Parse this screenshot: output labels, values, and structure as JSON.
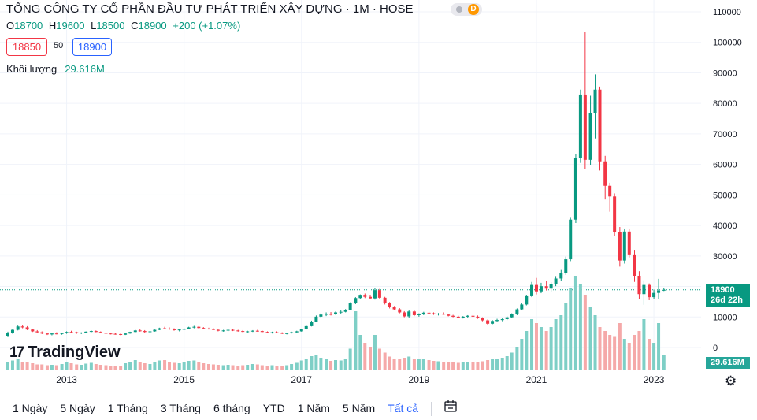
{
  "header": {
    "title": "TỔNG CÔNG TY CỔ PHẦN ĐẦU TƯ PHÁT TRIỂN XÂY DỰNG · 1M · HOSE",
    "badge": "D",
    "ohlc": {
      "o_label": "O",
      "o": "18700",
      "h_label": "H",
      "h": "19600",
      "l_label": "L",
      "l": "18500",
      "c_label": "C",
      "c": "18900",
      "change": "+200 (+1.07%)"
    },
    "sell_price": "18850",
    "spread": "50",
    "buy_price": "18900",
    "volume_label": "Khối lượng",
    "volume_value": "29.616M"
  },
  "logo": {
    "mark": "17",
    "text": "TradingView"
  },
  "last_price": {
    "price": "18900",
    "countdown": "26d 22h"
  },
  "volume_tag": "29.616M",
  "ranges": [
    "1 Ngày",
    "5 Ngày",
    "1 Tháng",
    "3 Tháng",
    "6 tháng",
    "YTD",
    "1 Năm",
    "5 Năm",
    "Tất cả"
  ],
  "active_range": "Tất cả",
  "icons": {
    "calendar": "calendar-range-icon",
    "settings": "gear-icon"
  },
  "colors": {
    "up": "#089981",
    "down": "#f23645",
    "vol_up": "#7ecfc6",
    "vol_down": "#f5a9a9"
  },
  "chart_data": {
    "type": "candlestick",
    "y_ticks": [
      110000,
      100000,
      90000,
      80000,
      70000,
      60000,
      50000,
      40000,
      30000,
      20000,
      10000,
      0
    ],
    "ylim": [
      0,
      110000
    ],
    "x_ticks": [
      "2013",
      "2015",
      "2017",
      "2019",
      "2021",
      "2023"
    ],
    "x_ticks_pos": [
      2013.0,
      2015.0,
      2017.0,
      2019.0,
      2021.0,
      2023.0
    ],
    "grid": true,
    "price_line": 18900,
    "candles": [
      [
        2012.0,
        3800,
        5200,
        3400,
        4800,
        2.0
      ],
      [
        2012.08,
        4800,
        6200,
        4500,
        5800,
        2.5
      ],
      [
        2012.17,
        5800,
        7200,
        5600,
        6900,
        2.8
      ],
      [
        2012.25,
        6900,
        7400,
        6300,
        6600,
        2.2
      ],
      [
        2012.33,
        6600,
        7000,
        5700,
        5900,
        2.0
      ],
      [
        2012.42,
        5900,
        6200,
        5100,
        5300,
        1.8
      ],
      [
        2012.5,
        5300,
        5700,
        4800,
        5000,
        1.5
      ],
      [
        2012.58,
        5000,
        5300,
        4400,
        4600,
        1.5
      ],
      [
        2012.67,
        4600,
        4900,
        4100,
        4300,
        1.3
      ],
      [
        2012.75,
        4300,
        4800,
        4000,
        4600,
        1.4
      ],
      [
        2012.83,
        4600,
        5000,
        4300,
        4500,
        1.3
      ],
      [
        2012.92,
        4500,
        4900,
        4200,
        4700,
        1.6
      ],
      [
        2013.0,
        4700,
        5300,
        4500,
        5100,
        2.0
      ],
      [
        2013.08,
        5100,
        5500,
        4800,
        5000,
        1.8
      ],
      [
        2013.17,
        5000,
        5200,
        4500,
        4700,
        1.5
      ],
      [
        2013.25,
        4700,
        5000,
        4400,
        4900,
        1.4
      ],
      [
        2013.33,
        4900,
        5300,
        4700,
        5200,
        1.7
      ],
      [
        2013.42,
        5200,
        5600,
        5000,
        5400,
        1.9
      ],
      [
        2013.5,
        5400,
        5600,
        5000,
        5100,
        1.6
      ],
      [
        2013.58,
        5100,
        5300,
        4700,
        4800,
        1.4
      ],
      [
        2013.67,
        4800,
        5000,
        4500,
        4600,
        1.3
      ],
      [
        2013.75,
        4600,
        4800,
        4300,
        4500,
        1.2
      ],
      [
        2013.83,
        4500,
        4800,
        4200,
        4400,
        1.2
      ],
      [
        2013.92,
        4400,
        4600,
        4000,
        4200,
        1.1
      ],
      [
        2014.0,
        4200,
        4700,
        4100,
        4600,
        1.8
      ],
      [
        2014.08,
        4600,
        5200,
        4500,
        5100,
        2.2
      ],
      [
        2014.17,
        5100,
        5800,
        5000,
        5600,
        2.6
      ],
      [
        2014.25,
        5600,
        6000,
        5200,
        5400,
        2.0
      ],
      [
        2014.33,
        5400,
        5700,
        4900,
        5100,
        1.8
      ],
      [
        2014.42,
        5100,
        5400,
        4800,
        5300,
        1.6
      ],
      [
        2014.5,
        5300,
        5900,
        5200,
        5800,
        2.0
      ],
      [
        2014.58,
        5800,
        6500,
        5700,
        6300,
        2.5
      ],
      [
        2014.67,
        6300,
        6800,
        6000,
        6200,
        2.6
      ],
      [
        2014.75,
        6200,
        6600,
        5800,
        6000,
        2.2
      ],
      [
        2014.83,
        6000,
        6300,
        5500,
        5700,
        1.9
      ],
      [
        2014.92,
        5700,
        6000,
        5300,
        5900,
        1.8
      ],
      [
        2015.0,
        5900,
        6300,
        5700,
        6100,
        2.0
      ],
      [
        2015.08,
        6100,
        6800,
        6000,
        6600,
        2.4
      ],
      [
        2015.17,
        6600,
        7100,
        6300,
        6800,
        2.5
      ],
      [
        2015.25,
        6800,
        7000,
        6200,
        6400,
        2.0
      ],
      [
        2015.33,
        6400,
        6700,
        6000,
        6200,
        1.8
      ],
      [
        2015.42,
        6200,
        6500,
        5900,
        6100,
        1.6
      ],
      [
        2015.5,
        6100,
        6300,
        5700,
        5800,
        1.5
      ],
      [
        2015.58,
        5800,
        6000,
        5300,
        5500,
        1.4
      ],
      [
        2015.67,
        5500,
        5800,
        5200,
        5600,
        1.3
      ],
      [
        2015.75,
        5600,
        5900,
        5300,
        5800,
        1.4
      ],
      [
        2015.83,
        5800,
        6000,
        5400,
        5600,
        1.3
      ],
      [
        2015.92,
        5600,
        5800,
        5200,
        5400,
        1.2
      ],
      [
        2016.0,
        5400,
        5700,
        5000,
        5200,
        1.3
      ],
      [
        2016.08,
        5200,
        5500,
        4800,
        5300,
        1.4
      ],
      [
        2016.17,
        5300,
        5700,
        5100,
        5500,
        1.6
      ],
      [
        2016.25,
        5500,
        5800,
        5200,
        5400,
        1.5
      ],
      [
        2016.33,
        5400,
        5600,
        5000,
        5100,
        1.3
      ],
      [
        2016.42,
        5100,
        5300,
        4800,
        4900,
        1.2
      ],
      [
        2016.5,
        4900,
        5200,
        4600,
        5000,
        1.3
      ],
      [
        2016.58,
        5000,
        5300,
        4700,
        4800,
        1.2
      ],
      [
        2016.67,
        4800,
        5000,
        4400,
        4600,
        1.1
      ],
      [
        2016.75,
        4600,
        4900,
        4300,
        4700,
        1.3
      ],
      [
        2016.83,
        4700,
        5200,
        4600,
        5000,
        1.6
      ],
      [
        2016.92,
        5000,
        5500,
        4800,
        5300,
        1.9
      ],
      [
        2017.0,
        5300,
        6200,
        5200,
        6000,
        2.5
      ],
      [
        2017.08,
        6000,
        7200,
        5900,
        7000,
        3.0
      ],
      [
        2017.17,
        7000,
        8800,
        6900,
        8500,
        3.6
      ],
      [
        2017.25,
        8500,
        10500,
        8300,
        10100,
        4.0
      ],
      [
        2017.33,
        10100,
        11200,
        9600,
        10800,
        3.2
      ],
      [
        2017.42,
        10800,
        11500,
        10300,
        11000,
        2.8
      ],
      [
        2017.5,
        11000,
        11600,
        10500,
        10900,
        2.4
      ],
      [
        2017.58,
        10900,
        11800,
        10700,
        11500,
        2.6
      ],
      [
        2017.67,
        11500,
        12200,
        11100,
        11700,
        2.5
      ],
      [
        2017.75,
        11700,
        12600,
        11500,
        12300,
        3.0
      ],
      [
        2017.83,
        12300,
        14800,
        12200,
        14500,
        5.5
      ],
      [
        2017.92,
        14500,
        16500,
        14200,
        16200,
        15.0
      ],
      [
        2018.0,
        16200,
        17400,
        15800,
        17000,
        9.0
      ],
      [
        2018.08,
        17000,
        17700,
        16200,
        16600,
        7.0
      ],
      [
        2018.17,
        16600,
        17200,
        15800,
        16100,
        6.0
      ],
      [
        2018.25,
        16100,
        19600,
        15700,
        18800,
        9.0
      ],
      [
        2018.33,
        18800,
        19200,
        15900,
        16300,
        5.5
      ],
      [
        2018.42,
        16300,
        16600,
        14100,
        14600,
        4.5
      ],
      [
        2018.5,
        14600,
        14900,
        12800,
        13200,
        3.5
      ],
      [
        2018.58,
        13200,
        13600,
        12200,
        12500,
        3.0
      ],
      [
        2018.67,
        12500,
        12900,
        11200,
        11500,
        3.0
      ],
      [
        2018.75,
        11500,
        11900,
        9900,
        10200,
        3.2
      ],
      [
        2018.83,
        10200,
        12200,
        9800,
        11800,
        3.5
      ],
      [
        2018.92,
        11800,
        12100,
        10300,
        10600,
        3.0
      ],
      [
        2019.0,
        10600,
        11200,
        10100,
        10900,
        2.8
      ],
      [
        2019.08,
        10900,
        11700,
        10600,
        11400,
        3.0
      ],
      [
        2019.17,
        11400,
        11800,
        10900,
        11200,
        2.6
      ],
      [
        2019.25,
        11200,
        11500,
        10700,
        10900,
        2.4
      ],
      [
        2019.33,
        10900,
        11300,
        10500,
        11100,
        2.3
      ],
      [
        2019.42,
        11100,
        11500,
        10700,
        10800,
        2.2
      ],
      [
        2019.5,
        10800,
        11100,
        10200,
        10400,
        2.1
      ],
      [
        2019.58,
        10400,
        10700,
        9900,
        10100,
        2.0
      ],
      [
        2019.67,
        10100,
        10400,
        9600,
        9800,
        1.9
      ],
      [
        2019.75,
        9800,
        10300,
        9500,
        10100,
        2.0
      ],
      [
        2019.83,
        10100,
        10600,
        9800,
        10400,
        2.2
      ],
      [
        2019.92,
        10400,
        10700,
        9900,
        10100,
        2.0
      ],
      [
        2020.0,
        10100,
        10500,
        9400,
        9700,
        2.1
      ],
      [
        2020.08,
        9700,
        9900,
        8600,
        8900,
        2.3
      ],
      [
        2020.17,
        8900,
        9200,
        7400,
        7800,
        2.6
      ],
      [
        2020.25,
        7800,
        9000,
        7600,
        8700,
        2.8
      ],
      [
        2020.33,
        8700,
        9400,
        8400,
        9000,
        3.0
      ],
      [
        2020.42,
        9000,
        9600,
        8600,
        9300,
        3.2
      ],
      [
        2020.5,
        9300,
        10200,
        9000,
        9900,
        3.6
      ],
      [
        2020.58,
        9900,
        11200,
        9700,
        10900,
        4.5
      ],
      [
        2020.67,
        10900,
        12800,
        10600,
        12500,
        6.0
      ],
      [
        2020.75,
        12500,
        14500,
        12200,
        14100,
        8.0
      ],
      [
        2020.83,
        14100,
        17200,
        13800,
        16800,
        10.0
      ],
      [
        2020.92,
        16800,
        21500,
        16500,
        20500,
        13.0
      ],
      [
        2021.0,
        20500,
        22800,
        17400,
        18400,
        12.0
      ],
      [
        2021.08,
        18400,
        21200,
        17800,
        20100,
        11.0
      ],
      [
        2021.17,
        20100,
        21800,
        18700,
        19300,
        10.0
      ],
      [
        2021.25,
        19300,
        21400,
        18400,
        20700,
        11.0
      ],
      [
        2021.33,
        20700,
        23400,
        20100,
        22600,
        13.0
      ],
      [
        2021.42,
        22600,
        25400,
        21900,
        24300,
        14.0
      ],
      [
        2021.5,
        24300,
        29800,
        23800,
        28900,
        17.0
      ],
      [
        2021.58,
        28900,
        42500,
        28300,
        41900,
        21.0
      ],
      [
        2021.67,
        41900,
        63500,
        40800,
        62100,
        24.0
      ],
      [
        2021.75,
        62100,
        84500,
        60500,
        82900,
        22.0
      ],
      [
        2021.83,
        82900,
        103500,
        58500,
        61500,
        19.0
      ],
      [
        2021.92,
        61500,
        82500,
        59800,
        76900,
        16.0
      ],
      [
        2022.0,
        76900,
        89500,
        68500,
        84500,
        14.0
      ],
      [
        2022.08,
        84500,
        85500,
        58000,
        61000,
        11.0
      ],
      [
        2022.17,
        61000,
        62800,
        48500,
        53000,
        10.0
      ],
      [
        2022.25,
        53000,
        54000,
        44500,
        49500,
        9.0
      ],
      [
        2022.33,
        49500,
        50500,
        36500,
        37900,
        8.5
      ],
      [
        2022.42,
        37900,
        39500,
        26500,
        28500,
        12.0
      ],
      [
        2022.5,
        28500,
        39000,
        27500,
        38000,
        8.0
      ],
      [
        2022.58,
        38000,
        39000,
        29500,
        30500,
        7.0
      ],
      [
        2022.67,
        30500,
        32000,
        21500,
        23500,
        9.0
      ],
      [
        2022.75,
        23500,
        25000,
        16000,
        17500,
        10.0
      ],
      [
        2022.83,
        17500,
        22000,
        14000,
        20500,
        13.0
      ],
      [
        2022.92,
        20500,
        21000,
        15500,
        16500,
        8.0
      ],
      [
        2023.0,
        16500,
        19000,
        16000,
        17900,
        7.0
      ],
      [
        2023.08,
        17900,
        22500,
        16000,
        18700,
        12.0
      ],
      [
        2023.17,
        18700,
        19600,
        18500,
        18900,
        4.0
      ]
    ]
  }
}
